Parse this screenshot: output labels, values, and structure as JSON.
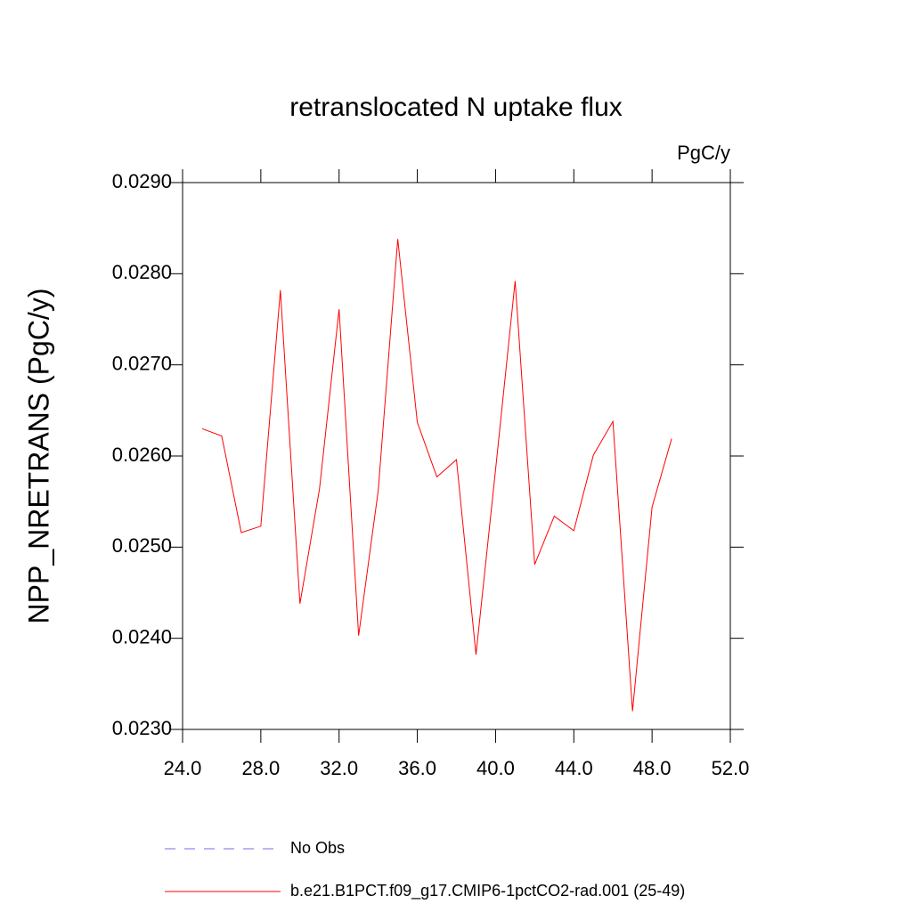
{
  "chart_data": {
    "type": "line",
    "title": "retranslocated N uptake flux",
    "units_label": "PgC/y",
    "y_label": "NPP_NRETRANS  (PgC/y)",
    "x": [
      25,
      26,
      27,
      28,
      29,
      30,
      31,
      32,
      33,
      34,
      35,
      36,
      37,
      38,
      39,
      40,
      41,
      42,
      43,
      44,
      45,
      46,
      47,
      48,
      49
    ],
    "series": [
      {
        "name": "b.e21.B1PCT.f09_g17.CMIP6-1pctCO2-rad.001 (25-49)",
        "color": "#ff0000",
        "values": [
          0.0263,
          0.02622,
          0.02516,
          0.02523,
          0.02782,
          0.02438,
          0.02564,
          0.02761,
          0.02403,
          0.02562,
          0.02838,
          0.02637,
          0.02577,
          0.02596,
          0.02382,
          0.02585,
          0.02792,
          0.02481,
          0.02534,
          0.02518,
          0.02601,
          0.02638,
          0.0232,
          0.02544,
          0.02619
        ]
      }
    ],
    "extra_legend": [
      {
        "name": "No Obs",
        "color": "#7b68ee",
        "dash": "12 10"
      }
    ],
    "xlim": [
      24,
      52
    ],
    "xticks": [
      {
        "value": 24,
        "label": "24.0"
      },
      {
        "value": 28,
        "label": "28.0"
      },
      {
        "value": 32,
        "label": "32.0"
      },
      {
        "value": 36,
        "label": "36.0"
      },
      {
        "value": 40,
        "label": "40.0"
      },
      {
        "value": 44,
        "label": "44.0"
      },
      {
        "value": 48,
        "label": "48.0"
      },
      {
        "value": 52,
        "label": "52.0"
      }
    ],
    "ylim": [
      0.023,
      0.029
    ],
    "yticks": [
      {
        "value": 0.023,
        "label": "0.0230"
      },
      {
        "value": 0.024,
        "label": "0.0240"
      },
      {
        "value": 0.025,
        "label": "0.0250"
      },
      {
        "value": 0.026,
        "label": "0.0260"
      },
      {
        "value": 0.027,
        "label": "0.0270"
      },
      {
        "value": 0.028,
        "label": "0.0280"
      },
      {
        "value": 0.029,
        "label": "0.0290"
      }
    ]
  }
}
